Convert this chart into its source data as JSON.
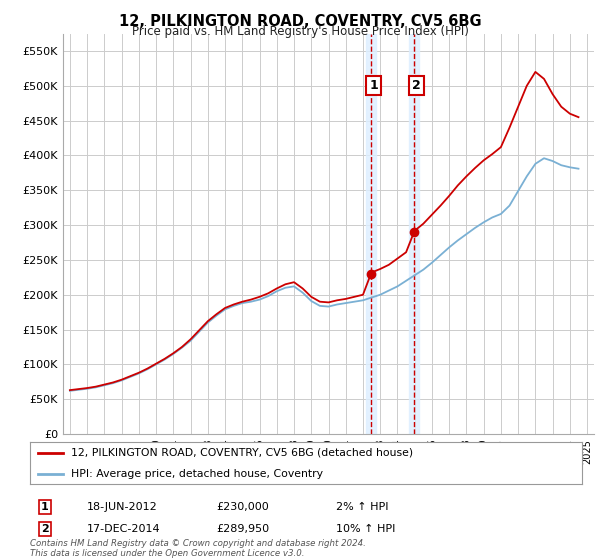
{
  "title": "12, PILKINGTON ROAD, COVENTRY, CV5 6BG",
  "subtitle": "Price paid vs. HM Land Registry's House Price Index (HPI)",
  "ylim": [
    0,
    575000
  ],
  "yticks": [
    0,
    50000,
    100000,
    150000,
    200000,
    250000,
    300000,
    350000,
    400000,
    450000,
    500000,
    550000
  ],
  "ytick_labels": [
    "£0",
    "£50K",
    "£100K",
    "£150K",
    "£200K",
    "£250K",
    "£300K",
    "£350K",
    "£400K",
    "£450K",
    "£500K",
    "£550K"
  ],
  "line1_color": "#cc0000",
  "line2_color": "#7ab0d4",
  "transaction1_date": 2012.46,
  "transaction1_price": 230000,
  "transaction2_date": 2014.96,
  "transaction2_price": 289950,
  "shade_color": "#ddeeff",
  "dashed_color": "#cc0000",
  "legend_label1": "12, PILKINGTON ROAD, COVENTRY, CV5 6BG (detached house)",
  "legend_label2": "HPI: Average price, detached house, Coventry",
  "table_rows": [
    {
      "num": "1",
      "date": "18-JUN-2012",
      "price": "£230,000",
      "change": "2% ↑ HPI"
    },
    {
      "num": "2",
      "date": "17-DEC-2014",
      "price": "£289,950",
      "change": "10% ↑ HPI"
    }
  ],
  "footer": "Contains HM Land Registry data © Crown copyright and database right 2024.\nThis data is licensed under the Open Government Licence v3.0.",
  "bg_color": "#ffffff",
  "grid_color": "#cccccc",
  "xlim_left": 1994.6,
  "xlim_right": 2025.4,
  "hpi_x": [
    1995,
    1995.5,
    1996,
    1996.5,
    1997,
    1997.5,
    1998,
    1998.5,
    1999,
    1999.5,
    2000,
    2000.5,
    2001,
    2001.5,
    2002,
    2002.5,
    2003,
    2003.5,
    2004,
    2004.5,
    2005,
    2005.5,
    2006,
    2006.5,
    2007,
    2007.5,
    2008,
    2008.5,
    2009,
    2009.5,
    2010,
    2010.5,
    2011,
    2011.5,
    2012,
    2012.5,
    2013,
    2013.5,
    2014,
    2014.5,
    2015,
    2015.5,
    2016,
    2016.5,
    2017,
    2017.5,
    2018,
    2018.5,
    2019,
    2019.5,
    2020,
    2020.5,
    2021,
    2021.5,
    2022,
    2022.5,
    2023,
    2023.5,
    2024,
    2024.5
  ],
  "hpi_y": [
    62000,
    63500,
    65000,
    67000,
    70000,
    73000,
    77000,
    82000,
    87000,
    93000,
    100000,
    107000,
    115000,
    124000,
    134000,
    147000,
    160000,
    170000,
    179000,
    184000,
    188000,
    190000,
    193000,
    198000,
    205000,
    210000,
    212000,
    203000,
    191000,
    184000,
    183000,
    186000,
    188000,
    190000,
    192000,
    196000,
    200000,
    206000,
    212000,
    220000,
    228000,
    236000,
    246000,
    257000,
    268000,
    278000,
    287000,
    296000,
    304000,
    311000,
    316000,
    328000,
    349000,
    370000,
    388000,
    396000,
    392000,
    386000,
    383000,
    381000
  ],
  "price_x": [
    1995,
    1995.5,
    1996,
    1996.5,
    1997,
    1997.5,
    1998,
    1998.5,
    1999,
    1999.5,
    2000,
    2000.5,
    2001,
    2001.5,
    2002,
    2002.5,
    2003,
    2003.5,
    2004,
    2004.5,
    2005,
    2005.5,
    2006,
    2006.5,
    2007,
    2007.5,
    2008,
    2008.5,
    2009,
    2009.5,
    2010,
    2010.5,
    2011,
    2011.5,
    2012,
    2012.46,
    2012.5,
    2013,
    2013.5,
    2014,
    2014.5,
    2014.96,
    2015,
    2015.5,
    2016,
    2016.5,
    2017,
    2017.5,
    2018,
    2018.5,
    2019,
    2019.5,
    2020,
    2020.5,
    2021,
    2021.5,
    2022,
    2022.5,
    2023,
    2023.5,
    2024,
    2024.5
  ],
  "price_y": [
    63000,
    64500,
    66000,
    68000,
    71000,
    74000,
    78000,
    83000,
    88000,
    94000,
    101000,
    108000,
    116000,
    125000,
    136000,
    149000,
    162000,
    172000,
    181000,
    186000,
    190000,
    193000,
    197000,
    202000,
    209000,
    215000,
    218000,
    209000,
    197000,
    190000,
    189000,
    192000,
    194000,
    197000,
    200000,
    230000,
    232000,
    237000,
    243000,
    252000,
    261000,
    289950,
    292000,
    302000,
    315000,
    328000,
    342000,
    357000,
    370000,
    382000,
    393000,
    402000,
    412000,
    440000,
    470000,
    500000,
    520000,
    510000,
    488000,
    470000,
    460000,
    455000
  ]
}
